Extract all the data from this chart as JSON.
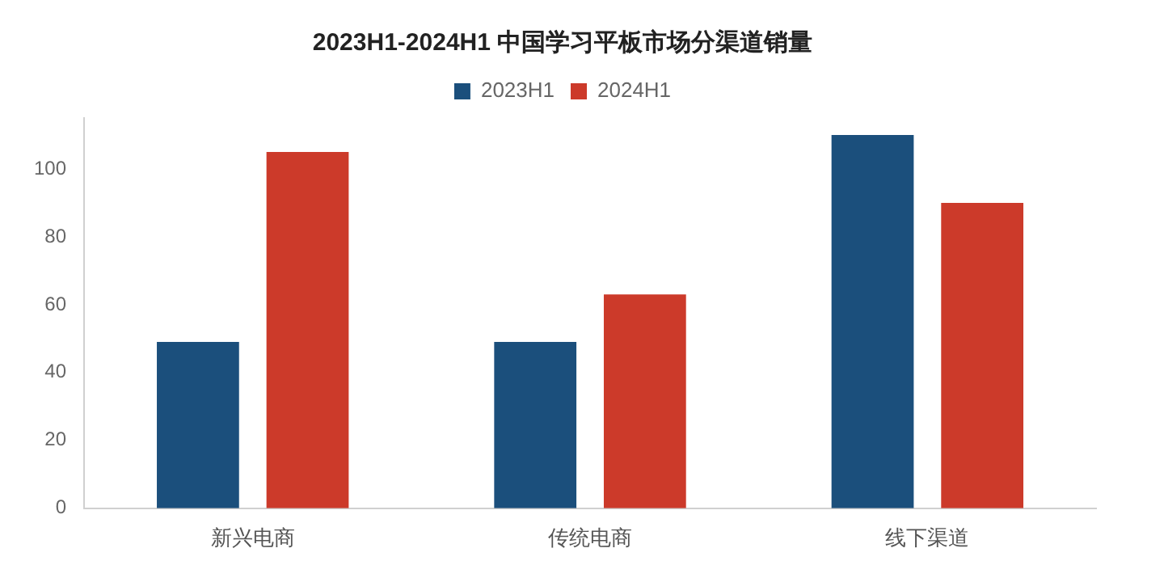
{
  "chart_data": {
    "type": "bar",
    "title": "2023H1-2024H1 中国学习平板市场分渠道销量",
    "categories": [
      "新兴电商",
      "传统电商",
      "线下渠道"
    ],
    "series": [
      {
        "name": "2023H1",
        "color": "#1b4f7c",
        "values": [
          49,
          49,
          110
        ]
      },
      {
        "name": "2024H1",
        "color": "#cc3a2a",
        "values": [
          105,
          63,
          90
        ]
      }
    ],
    "ylim": [
      0,
      115
    ],
    "yticks": [
      0,
      20,
      40,
      60,
      80,
      100
    ],
    "legend": "top"
  }
}
